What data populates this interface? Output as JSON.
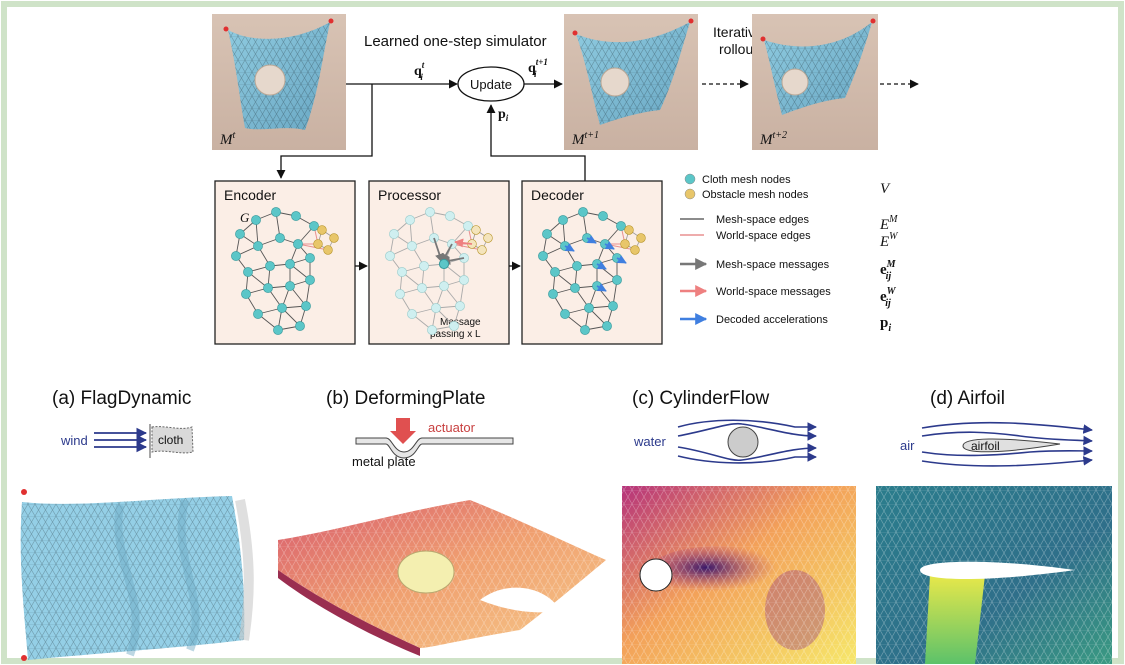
{
  "top": {
    "simulator_label": "Learned one-step simulator",
    "update_label": "Update",
    "rollout_label_line1": "Iterative",
    "rollout_label_line2": "rollout",
    "q_t_sym": "q",
    "q_t_sup": "t",
    "q_t_sub": "i",
    "q_t1_sym": "q",
    "q_t1_sup": "t+1",
    "q_t1_sub": "i",
    "p_sym": "p",
    "p_sub": "i",
    "m_t": "M",
    "m_t_sup": "t",
    "m_t1": "M",
    "m_t1_sup": "t+1",
    "m_t2": "M",
    "m_t2_sup": "t+2"
  },
  "boxes": {
    "encoder": "Encoder",
    "encoder_g": "G",
    "processor": "Processor",
    "processor_note_line1": "Message",
    "processor_note_line2": "passing x L",
    "decoder": "Decoder"
  },
  "legend": [
    {
      "label": "Cloth mesh nodes",
      "kind": "node",
      "color": "#5bc6c8"
    },
    {
      "label": "Obstacle mesh nodes",
      "kind": "node",
      "color": "#e8c66a"
    },
    {
      "label": "Mesh-space edges",
      "kind": "line",
      "color": "#666666"
    },
    {
      "label": "World-space edges",
      "kind": "line",
      "color": "#e89090"
    },
    {
      "label": "Mesh-space messages",
      "kind": "arrow",
      "color": "#777777"
    },
    {
      "label": "World-space messages",
      "kind": "arrow",
      "color": "#ee8080"
    },
    {
      "label": "Decoded accelerations",
      "kind": "arrow",
      "color": "#3f7fe0"
    }
  ],
  "legend_symbols": {
    "v": "V",
    "em": "E",
    "em_sup": "M",
    "ew": "E",
    "ew_sup": "W",
    "msg_m": "e",
    "msg_m_sup": "M",
    "msg_m_sub": "ij",
    "msg_w": "e",
    "msg_w_sup": "W",
    "msg_w_sub": "ij",
    "acc": "p",
    "acc_sub": "i"
  },
  "panels": [
    {
      "title": "(a) FlagDynamic",
      "tags": [
        "wind",
        "cloth"
      ]
    },
    {
      "title": "(b) DeformingPlate",
      "tags": [
        "actuator",
        "metal plate"
      ]
    },
    {
      "title": "(c) CylinderFlow",
      "tags": [
        "water"
      ]
    },
    {
      "title": "(d) Airfoil",
      "tags": [
        "air",
        "airfoil"
      ]
    }
  ],
  "colors": {
    "border": "#cfe3c8",
    "box_bg": "#fbeee6",
    "arrow": "#22224a",
    "flow": "#2c3a8c",
    "cloth": "#8fd0e8"
  }
}
